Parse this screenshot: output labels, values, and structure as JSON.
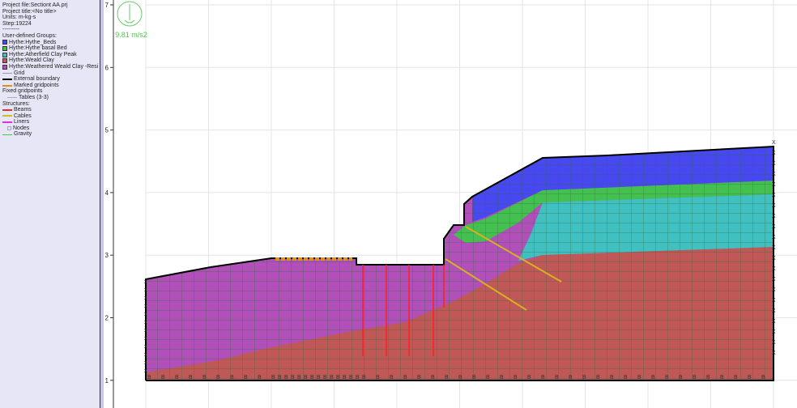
{
  "header": {
    "project_file": "Project file:Sectiont AA.prj",
    "project_title": "Project title:<No title>",
    "units": "Units: m-kg-s",
    "step": "Step:19224",
    "separator": "---------"
  },
  "legend": {
    "groups_title": "User-defined Groups:",
    "groups": [
      {
        "label": "Hythe:Hythe_Beds",
        "color": "#4848f0"
      },
      {
        "label": "Hythe:Hythe basal Bed",
        "color": "#44c050"
      },
      {
        "label": "Hythe:Atherfield Clay Peak",
        "color": "#40c0c0"
      },
      {
        "label": "Hythe:Weald Clay",
        "color": "#c05858"
      },
      {
        "label": "Hythe:Weathered Weald Clay -Resi",
        "color": "#b050b8"
      }
    ],
    "grid": "Grid",
    "external_boundary": "External boundary",
    "marked_gridpoints": "Marked gridpoints",
    "fixed_gridpoints": "Fixed gridpoints",
    "tables": "Tables (3-3)",
    "structures_title": "Structures:",
    "beams": "Beams",
    "cables": "Cables",
    "liners": "Liners",
    "nodes": "Nodes",
    "gravity": "Gravity"
  },
  "gravity": {
    "value": "9.81 m/s2",
    "color": "#44cc44"
  },
  "axis": {
    "y_ticks": [
      "7",
      "6",
      "5",
      "4",
      "3",
      "2",
      "1"
    ]
  },
  "colors": {
    "beam": "#ff2020",
    "cable": "#d8b020",
    "boundary": "#000000",
    "mesh": "#2e6a3a"
  }
}
